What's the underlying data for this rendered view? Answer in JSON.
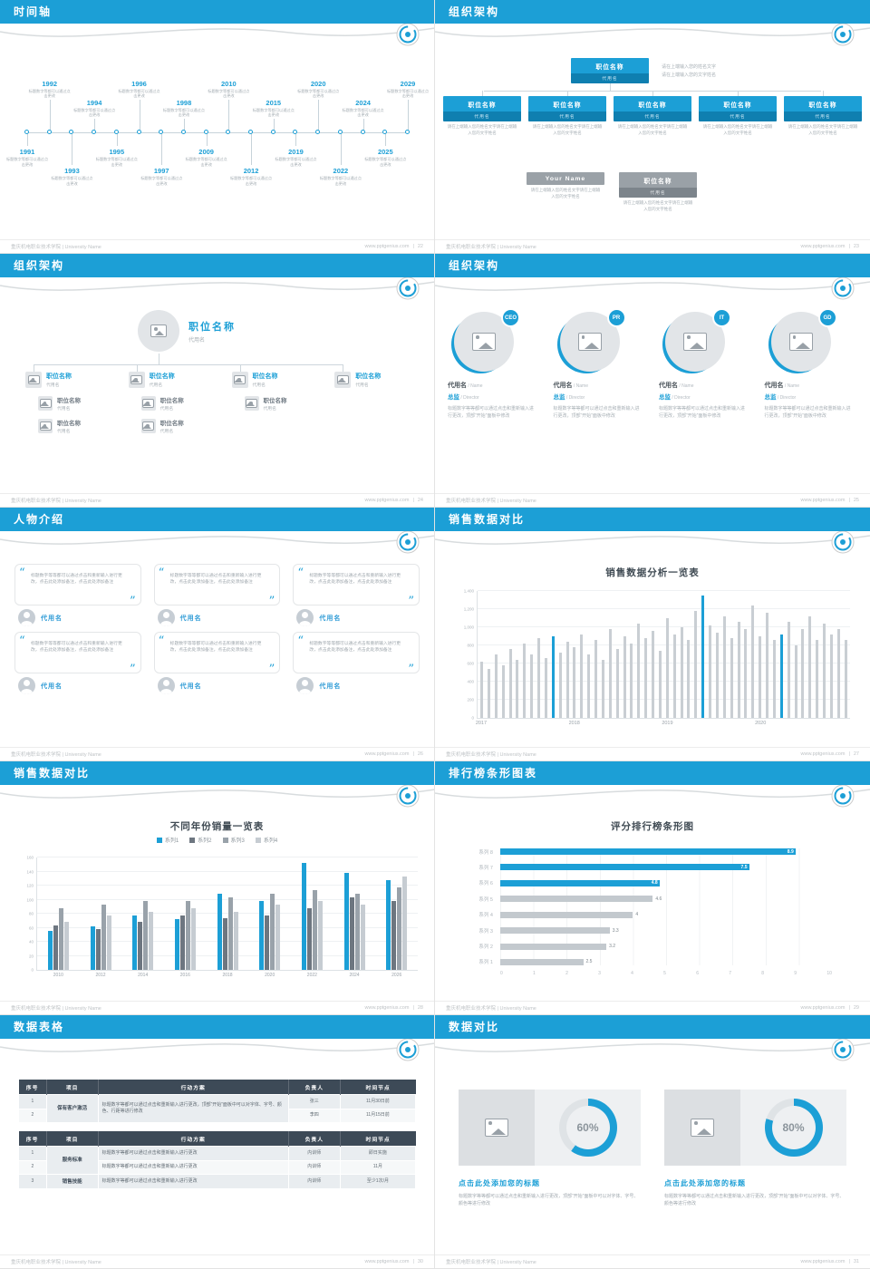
{
  "footer": {
    "org": "重庆机电职业技术学院 | University Name",
    "site": "www.pptgenius.com",
    "sep": "|"
  },
  "slides": {
    "timeline": {
      "title": "时间轴",
      "page": "22",
      "desc": "标题数字等都可以通过点击更改",
      "years": [
        "1991",
        "1992",
        "1993",
        "1994",
        "1995",
        "1996",
        "1997",
        "1998",
        "2009",
        "2010",
        "2012",
        "2015",
        "2019",
        "2020",
        "2022",
        "2024",
        "2025",
        "2029"
      ]
    },
    "org1": {
      "title": "组织架构",
      "page": "23",
      "box_title": "职位名称",
      "box_sub": "代用名",
      "note1": "请在上端输入您的姓名文字",
      "note2": "请在上端输入您的文字姓名",
      "desc": "请在上端输入您的姓名文字请在上端输入您的文字姓名",
      "row_count": 5,
      "gray1_title": "Your Name",
      "gray2_title": "职位名称",
      "gray2_sub": "代用名"
    },
    "org2": {
      "title": "组织架构",
      "page": "24",
      "root_title": "职位名称",
      "root_sub": "代用名",
      "child_title": "职位名称",
      "child_sub": "代用名",
      "children": [
        {
          "subs": 2
        },
        {
          "subs": 2
        },
        {
          "subs": 1
        },
        {
          "subs": 0
        }
      ]
    },
    "org3": {
      "title": "组织架构",
      "page": "25",
      "members": [
        {
          "badge": "CEO"
        },
        {
          "badge": "PR"
        },
        {
          "badge": "IT"
        },
        {
          "badge": "GD"
        }
      ],
      "name": "代用名",
      "name_en": "/ Name",
      "role": "总监",
      "role_en": "/ Director",
      "desc": "标题数字等等都可以通过点击和重新输入进行更改，顶部“开始”面板中修改"
    },
    "people": {
      "title": "人物介绍",
      "page": "26",
      "count": 6,
      "quote_open": "“",
      "quote_close": "”",
      "quote": "标题数字等等都可以通过点击和重新输入进行更改，点击此处添加备注，点击此处添加备注",
      "name": "代用名"
    },
    "sales1": {
      "title": "销售数据对比",
      "page": "27",
      "chart_title": "销售数据分析一览表"
    },
    "sales2": {
      "title": "销售数据对比",
      "page": "28",
      "chart_title": "不同年份销量一览表"
    },
    "ranking": {
      "title": "排行榜条形图表",
      "page": "29",
      "chart_title": "评分排行榜条形图"
    },
    "tables": {
      "title": "数据表格",
      "page": "30",
      "headers": [
        "序号",
        "项目",
        "行动方案",
        "负责人",
        "时间节点"
      ],
      "t1": {
        "no1": "1",
        "no2": "2",
        "project": "保有客户激活",
        "plan": "标题数字等都可以通过点击和重新输入进行更改，顶部“开始”面板中可以对字体、字号、颜色、行距等进行修改",
        "owner1": "张三",
        "time1": "11月30日前",
        "owner2": "李四",
        "time2": "11月15日前"
      },
      "t2": {
        "no1": "1",
        "no2": "2",
        "no3": "3",
        "project12": "服务标准",
        "project3": "销售技能",
        "plan": "标题数字等都可以通过点击和重新输入进行更改",
        "owner": "内训师",
        "time1": "即日实施",
        "time2": "11月",
        "time3": "至少1次/月"
      }
    },
    "compare": {
      "title": "数据对比",
      "page": "31",
      "item_title": "点击此处添加您的标题",
      "desc": "标题数字等等都可以通过点击和重新输入进行更改，顶部“开始”面板中可以对字体、字号、颜色等进行修改"
    }
  },
  "chart_data": [
    {
      "id": "sales-analysis",
      "type": "bar",
      "title": "销售数据分析一览表",
      "x_ticks": [
        "2017",
        "2018",
        "2019",
        "2020"
      ],
      "tick_indices": [
        0,
        13,
        26,
        39
      ],
      "ylim": [
        0,
        1400
      ],
      "ytick_step": 200,
      "bar_color": "#c9ced3",
      "highlight_color": "#1C9FD6",
      "highlight_indices": [
        10,
        31,
        42
      ],
      "values": [
        620,
        540,
        700,
        580,
        760,
        640,
        820,
        700,
        880,
        660,
        900,
        720,
        840,
        780,
        920,
        700,
        860,
        640,
        980,
        760,
        900,
        820,
        1040,
        880,
        960,
        740,
        1100,
        920,
        1000,
        860,
        1180,
        1350,
        1020,
        940,
        1120,
        880,
        1060,
        980,
        1240,
        900,
        1160,
        860,
        920,
        1060,
        800,
        980,
        1120,
        860,
        1040,
        920,
        980,
        860
      ]
    },
    {
      "id": "yearly-sales",
      "type": "bar",
      "title": "不同年份销量一览表",
      "categories": [
        "2010",
        "2012",
        "2014",
        "2016",
        "2018",
        "2020",
        "2022",
        "2024",
        "2026"
      ],
      "ylim": [
        0,
        160
      ],
      "ytick_step": 20,
      "series": [
        {
          "name": "系列1",
          "color": "#1C9FD6",
          "values": [
            55,
            62,
            78,
            72,
            108,
            98,
            152,
            138,
            128
          ]
        },
        {
          "name": "系列2",
          "color": "#6d7680",
          "values": [
            63,
            58,
            68,
            78,
            73,
            78,
            88,
            103,
            98
          ]
        },
        {
          "name": "系列3",
          "color": "#99a2aa",
          "values": [
            88,
            93,
            98,
            98,
            103,
            108,
            113,
            108,
            118
          ]
        },
        {
          "name": "系列4",
          "color": "#c6ccd2",
          "values": [
            68,
            78,
            83,
            88,
            83,
            93,
            98,
            93,
            133
          ]
        }
      ]
    },
    {
      "id": "score-ranking",
      "type": "bar-horizontal",
      "title": "评分排行榜条形图",
      "categories": [
        "系列 8",
        "系列 7",
        "系列 6",
        "系列 5",
        "系列 4",
        "系列 3",
        "系列 2",
        "系列 1"
      ],
      "values": [
        8.9,
        7.5,
        4.8,
        4.6,
        4,
        3.3,
        3.2,
        2.5
      ],
      "labels": [
        "8.9",
        "7.5",
        "4.8",
        "4.6",
        "4",
        "3.3",
        "3.2",
        "2.5"
      ],
      "xlim": [
        0,
        10
      ],
      "xtick_step": 1,
      "highlight_count": 3,
      "bar_color": "#c3c9ce",
      "highlight_color": "#1C9FD6"
    },
    {
      "id": "progress-donuts",
      "type": "donut",
      "values": [
        60,
        80
      ],
      "labels": [
        "60%",
        "80%"
      ],
      "ring_color": "#1C9FD6",
      "track_color": "#dfe3e6"
    }
  ]
}
